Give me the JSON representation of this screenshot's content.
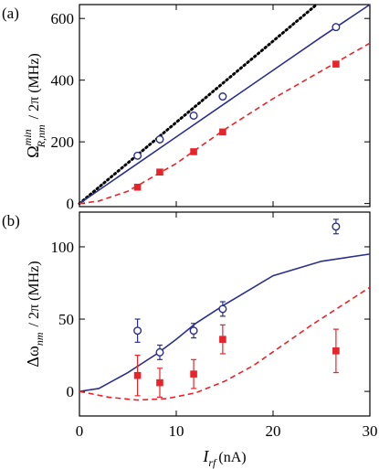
{
  "chart_data": [
    {
      "type": "line",
      "panel_label": "(a)",
      "ylabel": [
        "Ω",
        "min",
        "R,nm",
        "/ 2π (MHz)"
      ],
      "xlim": [
        0,
        30
      ],
      "xticks": [
        0,
        10,
        20,
        30
      ],
      "ylim": [
        -10,
        645
      ],
      "yticks": [
        0,
        200,
        400,
        600
      ],
      "series": [
        {
          "color": "#000000",
          "style": "dotted",
          "marker": null,
          "x": [
            0,
            24.5
          ],
          "values": [
            0,
            645
          ]
        },
        {
          "color": "#2b2f8c",
          "style": "solid",
          "marker": null,
          "x": [
            0,
            5,
            10,
            15,
            20,
            25,
            30
          ],
          "values": [
            0,
            108,
            216,
            324,
            432,
            540,
            645
          ]
        },
        {
          "color": "#e8242a",
          "style": "dashed",
          "marker": null,
          "x": [
            0,
            2,
            5,
            10,
            15,
            20,
            25,
            30
          ],
          "values": [
            0,
            8,
            40,
            130,
            240,
            340,
            430,
            520
          ]
        },
        {
          "color": "#2b2f8c",
          "style": "none",
          "marker": "circle",
          "x": [
            6,
            8.3,
            11.8,
            14.8,
            26.5
          ],
          "values": [
            155,
            208,
            285,
            347,
            572
          ]
        },
        {
          "color": "#e8242a",
          "style": "none",
          "marker": "square",
          "x": [
            6,
            8.3,
            11.8,
            14.8,
            26.5
          ],
          "values": [
            53,
            102,
            168,
            232,
            452
          ]
        }
      ]
    },
    {
      "type": "line",
      "panel_label": "(b)",
      "ylabel": [
        "Δω",
        "nm",
        "/ 2π (MHz)"
      ],
      "xlabel": [
        "I",
        "rf",
        "(nA)"
      ],
      "xlim": [
        0,
        30
      ],
      "xticks": [
        0,
        10,
        20,
        30
      ],
      "ylim": [
        -17,
        124
      ],
      "yticks": [
        0,
        50,
        100
      ],
      "series": [
        {
          "color": "#2b2f8c",
          "style": "solid",
          "marker": null,
          "x": [
            0,
            2,
            5,
            8,
            10,
            12,
            15,
            20,
            25,
            30
          ],
          "values": [
            0,
            2,
            13,
            26,
            36,
            47,
            60,
            80,
            90,
            95
          ]
        },
        {
          "color": "#e8242a",
          "style": "dashed",
          "marker": null,
          "x": [
            0,
            3,
            6,
            9,
            12,
            15,
            18,
            21,
            24,
            27,
            30
          ],
          "values": [
            0,
            -4,
            -6,
            -5,
            -1,
            7,
            18,
            32,
            46,
            59,
            72
          ]
        },
        {
          "color": "#2b2f8c",
          "style": "none",
          "marker": "circle",
          "x": [
            6,
            8.3,
            11.8,
            14.8,
            26.5
          ],
          "values": [
            42,
            27,
            42,
            57,
            114
          ],
          "errors": [
            8,
            5,
            5,
            5,
            5
          ]
        },
        {
          "color": "#e8242a",
          "style": "none",
          "marker": "square",
          "x": [
            6,
            8.3,
            11.8,
            14.8,
            26.5
          ],
          "values": [
            11,
            6,
            12,
            36,
            28
          ],
          "errors": [
            14,
            10,
            10,
            10,
            15
          ]
        }
      ]
    }
  ]
}
